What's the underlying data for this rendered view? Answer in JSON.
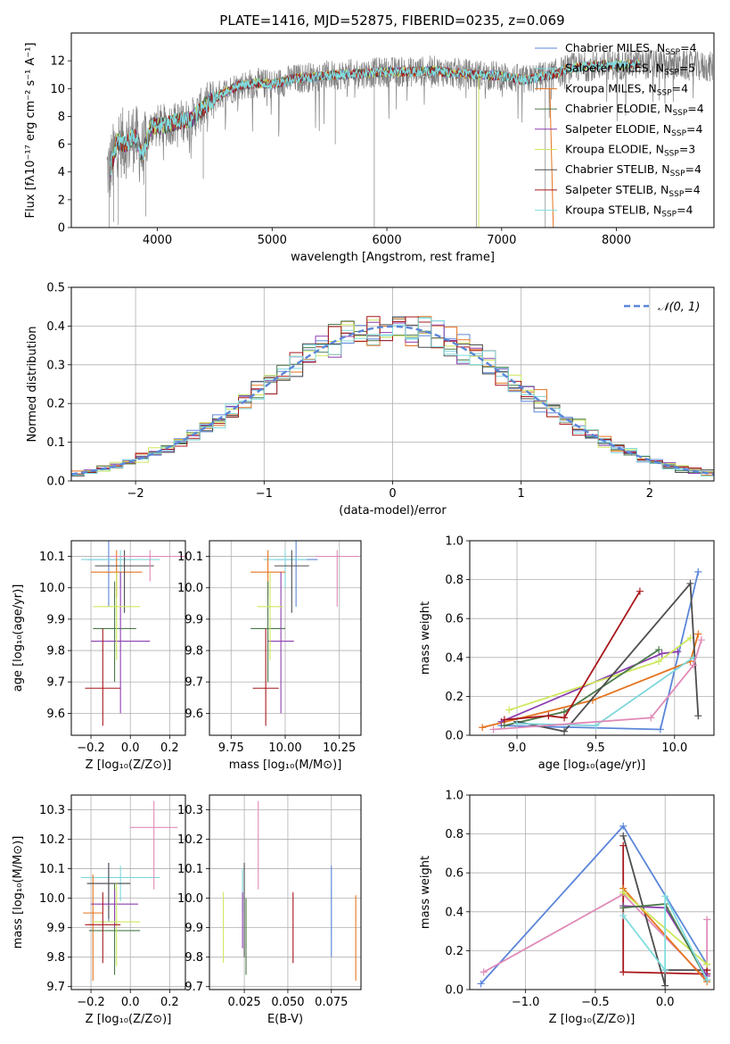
{
  "title": "PLATE=1416, MJD=52875, FIBERID=0235, z=0.069",
  "colors": {
    "Chabrier MILES": "#5b86d9",
    "Salpeter MILES": "#7fd6dc",
    "Kroupa MILES": "#e5731e",
    "Chabrier ELODIE": "#4a7a4a",
    "Salpeter ELODIE": "#8e3fb0",
    "Kroupa ELODIE": "#cde85c",
    "Chabrier STELIB": "#4d4d4d",
    "Salpeter STELIB": "#a8171c",
    "Kroupa STELIB": "#80dddf",
    "extra": "#e08ab8",
    "gauss": "#5b86d9",
    "grid": "#b0b0b0"
  },
  "chart_data": [
    {
      "id": "spectrum",
      "type": "line",
      "title": "PLATE=1416, MJD=52875, FIBERID=0235, z=0.069",
      "xlabel": "wavelength [Angstrom, rest frame]",
      "ylabel": "Flux [fλ10⁻¹⁷ erg cm⁻² s⁻¹ A⁻¹]",
      "xlim": [
        3250,
        8850
      ],
      "ylim": [
        0,
        14
      ],
      "xticks": [
        4000,
        5000,
        6000,
        7000,
        8000
      ],
      "yticks": [
        0,
        2,
        4,
        6,
        8,
        10,
        12
      ],
      "grid": false,
      "legend_position": "top-right",
      "legend": [
        {
          "label": "Chabrier MILES, N",
          "sub": "SSP",
          "suffix": "=4",
          "key": "Chabrier MILES"
        },
        {
          "label": "Salpeter MILES, N",
          "sub": "SSP",
          "suffix": "=5",
          "key": "Salpeter MILES"
        },
        {
          "label": "Kroupa MILES, N",
          "sub": "SSP",
          "suffix": "=4",
          "key": "Kroupa MILES"
        },
        {
          "label": "Chabrier ELODIE, N",
          "sub": "SSP",
          "suffix": "=4",
          "key": "Chabrier ELODIE"
        },
        {
          "label": "Salpeter ELODIE, N",
          "sub": "SSP",
          "suffix": "=4",
          "key": "Salpeter ELODIE"
        },
        {
          "label": "Kroupa ELODIE, N",
          "sub": "SSP",
          "suffix": "=3",
          "key": "Kroupa ELODIE"
        },
        {
          "label": "Chabrier STELIB, N",
          "sub": "SSP",
          "suffix": "=4",
          "key": "Chabrier STELIB"
        },
        {
          "label": "Salpeter STELIB, N",
          "sub": "SSP",
          "suffix": "=4",
          "key": "Salpeter STELIB"
        },
        {
          "label": "Kroupa STELIB, N",
          "sub": "SSP",
          "suffix": "=4",
          "key": "Kroupa STELIB"
        }
      ],
      "continuum_knots": [
        [
          3590,
          4.2
        ],
        [
          3650,
          6.2
        ],
        [
          3720,
          6.0
        ],
        [
          3800,
          6.6
        ],
        [
          3870,
          5.2
        ],
        [
          3950,
          7.3
        ],
        [
          4050,
          7.3
        ],
        [
          4150,
          7.6
        ],
        [
          4300,
          7.8
        ],
        [
          4420,
          8.8
        ],
        [
          4550,
          9.6
        ],
        [
          4700,
          10.2
        ],
        [
          4850,
          10.4
        ],
        [
          5000,
          10.3
        ],
        [
          5200,
          10.7
        ],
        [
          5400,
          10.9
        ],
        [
          5600,
          11.0
        ],
        [
          5800,
          11.1
        ],
        [
          6000,
          11.2
        ],
        [
          6200,
          11.2
        ],
        [
          6400,
          11.3
        ],
        [
          6600,
          11.1
        ],
        [
          6800,
          11.0
        ],
        [
          7000,
          10.9
        ],
        [
          7200,
          10.6
        ],
        [
          7300,
          10.8
        ],
        [
          7450,
          11.0
        ],
        [
          7600,
          11.5
        ],
        [
          7750,
          11.6
        ],
        [
          7900,
          11.7
        ],
        [
          8050,
          11.7
        ],
        [
          8200,
          11.8
        ]
      ],
      "model_extent": [
        3590,
        8200
      ],
      "observed_extent": [
        3560,
        8840
      ]
    },
    {
      "id": "residuals",
      "type": "histogram",
      "xlabel": "(data-model)/error",
      "ylabel": "Normed distribution",
      "xlim": [
        -2.5,
        2.5
      ],
      "ylim": [
        0,
        0.5
      ],
      "xticks": [
        -2,
        -1,
        0,
        1,
        2
      ],
      "yticks": [
        0.0,
        0.1,
        0.2,
        0.3,
        0.4,
        0.5
      ],
      "grid": true,
      "bin_width": 0.1,
      "series_keys": [
        "Chabrier MILES",
        "Salpeter MILES",
        "Kroupa MILES",
        "Chabrier ELODIE",
        "Salpeter ELODIE",
        "Kroupa ELODIE",
        "Chabrier STELIB",
        "Salpeter STELIB",
        "Kroupa STELIB"
      ],
      "gauss_label": "𝒩(0, 1)",
      "legend_position": "top-right"
    },
    {
      "id": "age_vs_Z",
      "type": "scatter",
      "xlabel": "Z [log₁₀(Z/Z⊙)]",
      "ylabel": "age  [log₁₀(age/yr)]",
      "xlim": [
        -0.3,
        0.28
      ],
      "ylim": [
        9.53,
        10.15
      ],
      "xticks": [
        -0.2,
        0.0,
        0.2
      ],
      "yticks": [
        9.6,
        9.7,
        9.8,
        9.9,
        10.0,
        10.1
      ],
      "grid": true,
      "points": [
        {
          "key": "Chabrier MILES",
          "x": -0.11,
          "xerr": 0.11,
          "y": 10.09,
          "ylo": 9.94,
          "yhi": 10.15
        },
        {
          "key": "Salpeter MILES",
          "x": -0.05,
          "xerr": 0.2,
          "y": 10.09,
          "ylo": 10.0,
          "yhi": 10.12
        },
        {
          "key": "Kroupa MILES",
          "x": -0.07,
          "xerr": 0.13,
          "y": 10.05,
          "ylo": 9.97,
          "yhi": 10.12
        },
        {
          "key": "Chabrier STELIB",
          "x": -0.03,
          "xerr": 0.15,
          "y": 10.07,
          "ylo": 9.92,
          "yhi": 10.12
        },
        {
          "key": "Chabrier ELODIE",
          "x": -0.08,
          "xerr": 0.11,
          "y": 9.87,
          "ylo": 9.7,
          "yhi": 10.02
        },
        {
          "key": "Salpeter ELODIE",
          "x": -0.05,
          "xerr": 0.15,
          "y": 9.83,
          "ylo": 9.6,
          "yhi": 10.05
        },
        {
          "key": "Kroupa ELODIE",
          "x": -0.07,
          "xerr": 0.12,
          "y": 9.94,
          "ylo": 9.77,
          "yhi": 10.05
        },
        {
          "key": "Salpeter STELIB",
          "x": -0.14,
          "xerr": 0.09,
          "y": 9.68,
          "ylo": 9.56,
          "yhi": 9.87
        },
        {
          "key": "extra",
          "x": 0.1,
          "xerr": 0.2,
          "y": 10.1,
          "ylo": 10.02,
          "yhi": 10.12
        }
      ]
    },
    {
      "id": "age_vs_mass",
      "type": "scatter",
      "xlabel": "mass [log₁₀(M/M⊙)]",
      "ylabel": "",
      "xlim": [
        9.65,
        10.35
      ],
      "ylim": [
        9.53,
        10.15
      ],
      "xticks": [
        9.75,
        10.0,
        10.25
      ],
      "yticks": [
        9.6,
        9.7,
        9.8,
        9.9,
        10.0,
        10.1
      ],
      "grid": true,
      "points": [
        {
          "key": "Chabrier MILES",
          "x": 10.05,
          "xerr": 0.1,
          "y": 10.09,
          "ylo": 9.94,
          "yhi": 10.15
        },
        {
          "key": "Salpeter MILES",
          "x": 10.0,
          "xerr": 0.1,
          "y": 10.09,
          "ylo": 10.0,
          "yhi": 10.12
        },
        {
          "key": "Kroupa MILES",
          "x": 9.92,
          "xerr": 0.08,
          "y": 10.05,
          "ylo": 9.97,
          "yhi": 10.12
        },
        {
          "key": "Chabrier STELIB",
          "x": 10.03,
          "xerr": 0.08,
          "y": 10.07,
          "ylo": 9.92,
          "yhi": 10.12
        },
        {
          "key": "Chabrier ELODIE",
          "x": 9.92,
          "xerr": 0.08,
          "y": 9.87,
          "ylo": 9.7,
          "yhi": 10.02
        },
        {
          "key": "Salpeter ELODIE",
          "x": 9.98,
          "xerr": 0.06,
          "y": 9.83,
          "ylo": 9.6,
          "yhi": 10.05
        },
        {
          "key": "Kroupa ELODIE",
          "x": 9.93,
          "xerr": 0.06,
          "y": 9.94,
          "ylo": 9.77,
          "yhi": 10.05
        },
        {
          "key": "Salpeter STELIB",
          "x": 9.91,
          "xerr": 0.06,
          "y": 9.68,
          "ylo": 9.56,
          "yhi": 9.87
        },
        {
          "key": "extra",
          "x": 10.24,
          "xerr": 0.1,
          "y": 10.1,
          "ylo": 9.94,
          "yhi": 10.12
        }
      ]
    },
    {
      "id": "weight_vs_age",
      "type": "line",
      "xlabel": "age  [log₁₀(age/yr)]",
      "ylabel": "mass weight",
      "xlim": [
        8.7,
        10.25
      ],
      "ylim": [
        0,
        1
      ],
      "xticks": [
        9.0,
        9.5,
        10.0
      ],
      "yticks": [
        0.0,
        0.2,
        0.4,
        0.6,
        0.8,
        1.0
      ],
      "grid": true,
      "series": [
        {
          "key": "Chabrier MILES",
          "x": [
            8.9,
            9.91,
            10.15
          ],
          "y": [
            0.05,
            0.03,
            0.84
          ]
        },
        {
          "key": "Kroupa MILES",
          "x": [
            8.78,
            9.48,
            10.1,
            10.15
          ],
          "y": [
            0.04,
            0.18,
            0.38,
            0.52
          ]
        },
        {
          "key": "Salpeter ELODIE",
          "x": [
            8.9,
            9.92,
            10.02
          ],
          "y": [
            0.07,
            0.42,
            0.43
          ]
        },
        {
          "key": "Kroupa ELODIE",
          "x": [
            8.95,
            9.9,
            10.1
          ],
          "y": [
            0.13,
            0.38,
            0.5
          ]
        },
        {
          "key": "Chabrier ELODIE",
          "x": [
            8.92,
            9.3,
            9.9
          ],
          "y": [
            0.05,
            0.12,
            0.44
          ]
        },
        {
          "key": "Chabrier STELIB",
          "x": [
            9.0,
            9.3,
            10.1,
            10.15
          ],
          "y": [
            0.07,
            0.02,
            0.78,
            0.1
          ]
        },
        {
          "key": "Salpeter STELIB",
          "x": [
            8.92,
            9.2,
            9.3,
            9.78
          ],
          "y": [
            0.08,
            0.1,
            0.09,
            0.74
          ]
        },
        {
          "key": "Salpeter MILES",
          "x": [
            9.0,
            9.5,
            10.12
          ],
          "y": [
            0.06,
            0.05,
            0.4
          ]
        },
        {
          "key": "extra",
          "x": [
            8.85,
            9.85,
            10.12,
            10.17
          ],
          "y": [
            0.03,
            0.09,
            0.36,
            0.49
          ]
        }
      ]
    },
    {
      "id": "mass_vs_Z",
      "type": "scatter",
      "xlabel": "Z [log₁₀(Z/Z⊙)]",
      "ylabel": "mass [log₁₀(M/M⊙)]",
      "xlim": [
        -0.3,
        0.28
      ],
      "ylim": [
        9.69,
        10.35
      ],
      "xticks": [
        -0.2,
        0.0,
        0.2
      ],
      "yticks": [
        9.7,
        9.8,
        9.9,
        10.0,
        10.1,
        10.2,
        10.3
      ],
      "grid": true,
      "points": [
        {
          "key": "Chabrier MILES",
          "x": -0.11,
          "xerr": 0.11,
          "y": 10.05,
          "ylo": 9.92,
          "yhi": 10.12
        },
        {
          "key": "Salpeter MILES",
          "x": -0.05,
          "xerr": 0.2,
          "y": 10.07,
          "ylo": 9.99,
          "yhi": 10.11
        },
        {
          "key": "Kroupa MILES",
          "x": -0.19,
          "xerr": 0.05,
          "y": 9.95,
          "ylo": 9.72,
          "yhi": 10.08
        },
        {
          "key": "Chabrier STELIB",
          "x": -0.11,
          "xerr": 0.11,
          "y": 10.05,
          "ylo": 9.93,
          "yhi": 10.12
        },
        {
          "key": "Chabrier ELODIE",
          "x": -0.08,
          "xerr": 0.13,
          "y": 9.89,
          "ylo": 9.74,
          "yhi": 10.05
        },
        {
          "key": "Salpeter ELODIE",
          "x": -0.08,
          "xerr": 0.12,
          "y": 9.98,
          "ylo": 9.9,
          "yhi": 10.03
        },
        {
          "key": "Kroupa ELODIE",
          "x": -0.07,
          "xerr": 0.12,
          "y": 9.92,
          "ylo": 9.77,
          "yhi": 10.05
        },
        {
          "key": "Salpeter STELIB",
          "x": -0.14,
          "xerr": 0.09,
          "y": 9.91,
          "ylo": 9.78,
          "yhi": 10.02
        },
        {
          "key": "extra",
          "x": 0.12,
          "xerr": 0.12,
          "y": 10.24,
          "ylo": 10.03,
          "yhi": 10.33
        }
      ]
    },
    {
      "id": "mass_vs_ebv",
      "type": "scatter",
      "xlabel": "E(B-V)",
      "ylabel": "",
      "xlim": [
        0.005,
        0.092
      ],
      "ylim": [
        9.69,
        10.35
      ],
      "xticks": [
        0.025,
        0.05,
        0.075
      ],
      "yticks": [
        9.7,
        9.8,
        9.9,
        10.0,
        10.1,
        10.2,
        10.3
      ],
      "grid": true,
      "points": [
        {
          "key": "Kroupa ELODIE",
          "x": 0.013,
          "ylo": 9.78,
          "yhi": 10.02
        },
        {
          "key": "Salpeter MILES",
          "x": 0.024,
          "ylo": 9.95,
          "yhi": 10.1
        },
        {
          "key": "Salpeter ELODIE",
          "x": 0.024,
          "ylo": 9.83,
          "yhi": 10.02
        },
        {
          "key": "Chabrier STELIB",
          "x": 0.025,
          "ylo": 9.8,
          "yhi": 10.12
        },
        {
          "key": "Chabrier ELODIE",
          "x": 0.026,
          "ylo": 9.74,
          "yhi": 10.0
        },
        {
          "key": "extra",
          "x": 0.033,
          "ylo": 10.03,
          "yhi": 10.33
        },
        {
          "key": "Salpeter STELIB",
          "x": 0.053,
          "ylo": 9.78,
          "yhi": 10.02
        },
        {
          "key": "Chabrier MILES",
          "x": 0.075,
          "ylo": 9.8,
          "yhi": 10.11
        },
        {
          "key": "Kroupa MILES",
          "x": 0.089,
          "ylo": 9.72,
          "yhi": 10.01
        }
      ]
    },
    {
      "id": "weight_vs_Z",
      "type": "line",
      "xlabel": "Z [log₁₀(Z/Z⊙)]",
      "ylabel": "mass weight",
      "xlim": [
        -1.4,
        0.35
      ],
      "ylim": [
        0,
        1
      ],
      "xticks": [
        -1.0,
        -0.5,
        0.0
      ],
      "yticks": [
        0.0,
        0.2,
        0.4,
        0.6,
        0.8,
        1.0
      ],
      "grid": true,
      "series": [
        {
          "key": "Chabrier MILES",
          "x": [
            -1.32,
            -0.3,
            0.3
          ],
          "y": [
            0.03,
            0.84,
            0.13
          ]
        },
        {
          "key": "extra",
          "x": [
            -1.3,
            -0.3,
            0.3,
            0.3
          ],
          "y": [
            0.09,
            0.49,
            0.05,
            0.36
          ]
        },
        {
          "key": "Chabrier STELIB",
          "x": [
            -0.3,
            0.0,
            0.0,
            0.3
          ],
          "y": [
            0.79,
            0.02,
            0.1,
            0.1
          ]
        },
        {
          "key": "Salpeter STELIB",
          "x": [
            -0.3,
            -0.3,
            0.3,
            0.3
          ],
          "y": [
            0.74,
            0.09,
            0.08,
            0.1
          ]
        },
        {
          "key": "Kroupa MILES",
          "x": [
            -0.3,
            0.3
          ],
          "y": [
            0.52,
            0.04
          ]
        },
        {
          "key": "Kroupa ELODIE",
          "x": [
            -0.3,
            0.3
          ],
          "y": [
            0.5,
            0.13
          ]
        },
        {
          "key": "Salpeter ELODIE",
          "x": [
            -0.3,
            0.0,
            0.3
          ],
          "y": [
            0.43,
            0.42,
            0.07
          ]
        },
        {
          "key": "Chabrier ELODIE",
          "x": [
            -0.3,
            0.0,
            0.3
          ],
          "y": [
            0.42,
            0.44,
            0.05
          ]
        },
        {
          "key": "Kroupa STELIB",
          "x": [
            -0.3,
            0.0,
            0.0,
            0.3
          ],
          "y": [
            0.38,
            0.1,
            0.48,
            0.05
          ]
        }
      ]
    }
  ]
}
